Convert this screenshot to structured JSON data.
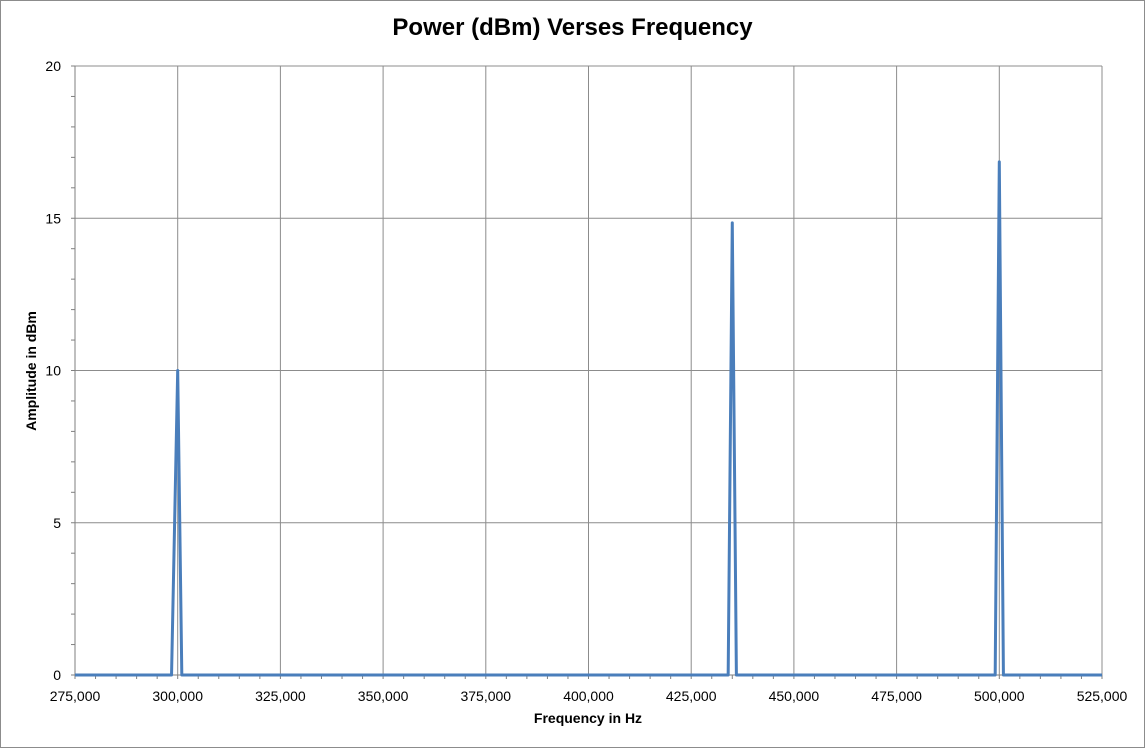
{
  "chart_data": {
    "type": "line",
    "title": "Power (dBm) Verses Frequency",
    "xlabel": "Frequency in Hz",
    "ylabel": "Amplitude in dBm",
    "xlim": [
      275000,
      525000
    ],
    "ylim": [
      0,
      20
    ],
    "x_ticks": [
      275000,
      300000,
      325000,
      350000,
      375000,
      400000,
      425000,
      450000,
      475000,
      500000,
      525000
    ],
    "x_tick_labels": [
      "275,000",
      "300,000",
      "325,000",
      "350,000",
      "375,000",
      "400,000",
      "425,000",
      "450,000",
      "475,000",
      "500,000",
      "525,000"
    ],
    "y_ticks": [
      0,
      5,
      10,
      15,
      20
    ],
    "y_tick_labels": [
      "0",
      "5",
      "10",
      "15",
      "20"
    ],
    "grid": true,
    "line_color": "#4a7ebb",
    "series": [
      {
        "x": [
          275000,
          298500,
          300000,
          301000,
          434000,
          435000,
          436000,
          499000,
          500000,
          501000,
          525000
        ],
        "values": [
          0,
          0,
          10,
          0,
          0,
          14.85,
          0,
          0,
          16.85,
          0,
          0
        ]
      }
    ]
  }
}
